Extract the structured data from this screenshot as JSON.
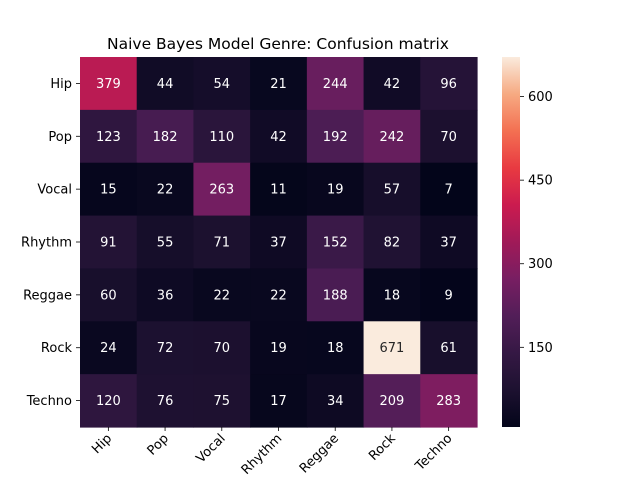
{
  "chart_data": {
    "type": "heatmap",
    "title": "Naive Bayes Model Genre: Confusion matrix",
    "xlabel": "",
    "ylabel": "",
    "row_labels": [
      "Hip",
      "Pop",
      "Vocal",
      "Rhythm",
      "Reggae",
      "Rock",
      "Techno"
    ],
    "col_labels": [
      "Hip",
      "Pop",
      "Vocal",
      "Rhythm",
      "Reggae",
      "Rock",
      "Techno"
    ],
    "values": [
      [
        379,
        44,
        54,
        21,
        244,
        42,
        96
      ],
      [
        123,
        182,
        110,
        42,
        192,
        242,
        70
      ],
      [
        15,
        22,
        263,
        11,
        19,
        57,
        7
      ],
      [
        91,
        55,
        71,
        37,
        152,
        82,
        37
      ],
      [
        60,
        36,
        22,
        22,
        188,
        18,
        9
      ],
      [
        24,
        72,
        70,
        19,
        18,
        671,
        61
      ],
      [
        120,
        76,
        75,
        17,
        34,
        209,
        283
      ]
    ],
    "colorbar": {
      "min": 7,
      "max": 671,
      "ticks": [
        150,
        300,
        450,
        600
      ],
      "colormap": "rocket"
    },
    "annotations": true,
    "grid": false
  }
}
